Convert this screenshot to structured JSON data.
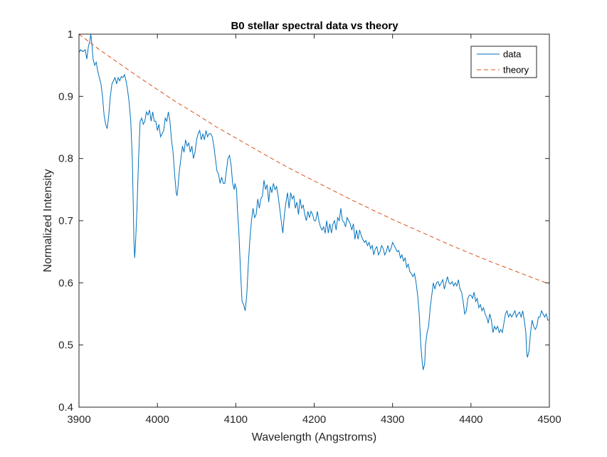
{
  "chart_data": {
    "type": "line",
    "title": "B0 stellar spectral data vs theory",
    "xlabel": "Wavelength (Angstroms)",
    "ylabel": "Normalized Intensity",
    "xlim": [
      3900,
      4500
    ],
    "ylim": [
      0.4,
      1.0
    ],
    "xticks": [
      3900,
      4000,
      4100,
      4200,
      4300,
      4400,
      4500
    ],
    "yticks": [
      0.4,
      0.5,
      0.6,
      0.7,
      0.8,
      0.9,
      1.0
    ],
    "xtick_labels": [
      "3900",
      "4000",
      "4100",
      "4200",
      "4300",
      "4400",
      "4500"
    ],
    "ytick_labels": [
      "0.4",
      "0.5",
      "0.6",
      "0.7",
      "0.8",
      "0.9",
      "1"
    ],
    "grid": false,
    "legend_position": "top-right",
    "series": [
      {
        "name": "data",
        "color": "#0072BD",
        "style": "solid",
        "x": [
          3900,
          3902,
          3905,
          3908,
          3910,
          3912,
          3914,
          3915,
          3916,
          3918,
          3920,
          3922,
          3924,
          3926,
          3928,
          3930,
          3932,
          3934,
          3936,
          3938,
          3940,
          3942,
          3944,
          3946,
          3948,
          3950,
          3952,
          3954,
          3956,
          3958,
          3960,
          3962,
          3964,
          3966,
          3968,
          3969,
          3970,
          3971,
          3972,
          3974,
          3976,
          3978,
          3980,
          3982,
          3984,
          3986,
          3988,
          3990,
          3992,
          3994,
          3996,
          3998,
          4000,
          4002,
          4004,
          4006,
          4008,
          4010,
          4012,
          4014,
          4016,
          4018,
          4020,
          4022,
          4024,
          4025,
          4026,
          4028,
          4030,
          4032,
          4034,
          4036,
          4038,
          4040,
          4042,
          4044,
          4046,
          4048,
          4050,
          4052,
          4054,
          4056,
          4058,
          4060,
          4062,
          4064,
          4066,
          4068,
          4070,
          4072,
          4074,
          4076,
          4078,
          4080,
          4082,
          4084,
          4086,
          4088,
          4090,
          4092,
          4094,
          4096,
          4098,
          4099,
          4100,
          4101,
          4102,
          4104,
          4106,
          4108,
          4110,
          4112,
          4114,
          4116,
          4118,
          4120,
          4122,
          4124,
          4126,
          4128,
          4130,
          4132,
          4134,
          4136,
          4138,
          4140,
          4142,
          4144,
          4146,
          4148,
          4150,
          4152,
          4154,
          4156,
          4158,
          4160,
          4162,
          4164,
          4166,
          4168,
          4170,
          4172,
          4174,
          4176,
          4178,
          4180,
          4182,
          4184,
          4186,
          4188,
          4190,
          4192,
          4194,
          4196,
          4198,
          4200,
          4202,
          4204,
          4206,
          4208,
          4210,
          4212,
          4214,
          4216,
          4218,
          4220,
          4222,
          4224,
          4226,
          4228,
          4230,
          4232,
          4234,
          4236,
          4238,
          4240,
          4242,
          4244,
          4246,
          4248,
          4250,
          4252,
          4254,
          4256,
          4258,
          4260,
          4262,
          4264,
          4266,
          4268,
          4270,
          4272,
          4274,
          4276,
          4278,
          4280,
          4282,
          4284,
          4286,
          4288,
          4290,
          4292,
          4294,
          4296,
          4298,
          4300,
          4302,
          4304,
          4306,
          4308,
          4310,
          4312,
          4314,
          4316,
          4318,
          4320,
          4322,
          4324,
          4326,
          4328,
          4330,
          4332,
          4334,
          4336,
          4338,
          4339,
          4340,
          4341,
          4342,
          4344,
          4346,
          4348,
          4350,
          4352,
          4354,
          4356,
          4358,
          4360,
          4362,
          4364,
          4366,
          4368,
          4370,
          4372,
          4374,
          4376,
          4378,
          4380,
          4382,
          4384,
          4386,
          4388,
          4390,
          4392,
          4394,
          4396,
          4398,
          4400,
          4402,
          4404,
          4406,
          4408,
          4410,
          4412,
          4414,
          4416,
          4418,
          4420,
          4422,
          4424,
          4426,
          4428,
          4430,
          4432,
          4434,
          4436,
          4438,
          4440,
          4442,
          4444,
          4446,
          4448,
          4450,
          4452,
          4454,
          4456,
          4458,
          4460,
          4462,
          4464,
          4466,
          4468,
          4470,
          4471,
          4472,
          4474,
          4476,
          4478,
          4480,
          4482,
          4484,
          4486,
          4488,
          4490,
          4492,
          4494,
          4496,
          4498,
          4500
        ],
        "y": [
          0.97,
          0.975,
          0.972,
          0.975,
          0.96,
          0.98,
          0.99,
          1.0,
          0.99,
          0.96,
          0.95,
          0.955,
          0.94,
          0.93,
          0.92,
          0.9,
          0.87,
          0.855,
          0.848,
          0.87,
          0.9,
          0.92,
          0.925,
          0.93,
          0.92,
          0.93,
          0.925,
          0.932,
          0.93,
          0.935,
          0.925,
          0.91,
          0.89,
          0.86,
          0.8,
          0.74,
          0.67,
          0.64,
          0.66,
          0.72,
          0.8,
          0.86,
          0.865,
          0.855,
          0.86,
          0.875,
          0.87,
          0.878,
          0.86,
          0.875,
          0.86,
          0.86,
          0.845,
          0.855,
          0.835,
          0.84,
          0.845,
          0.865,
          0.86,
          0.875,
          0.86,
          0.83,
          0.81,
          0.775,
          0.745,
          0.74,
          0.75,
          0.78,
          0.8,
          0.82,
          0.81,
          0.83,
          0.82,
          0.825,
          0.81,
          0.82,
          0.8,
          0.81,
          0.83,
          0.84,
          0.845,
          0.83,
          0.84,
          0.83,
          0.845,
          0.835,
          0.84,
          0.84,
          0.835,
          0.82,
          0.8,
          0.78,
          0.775,
          0.76,
          0.77,
          0.76,
          0.76,
          0.78,
          0.8,
          0.805,
          0.79,
          0.76,
          0.75,
          0.76,
          0.755,
          0.75,
          0.72,
          0.68,
          0.62,
          0.57,
          0.565,
          0.555,
          0.58,
          0.63,
          0.67,
          0.7,
          0.72,
          0.705,
          0.71,
          0.735,
          0.72,
          0.735,
          0.74,
          0.765,
          0.75,
          0.758,
          0.73,
          0.755,
          0.745,
          0.76,
          0.75,
          0.755,
          0.74,
          0.72,
          0.7,
          0.68,
          0.71,
          0.73,
          0.745,
          0.72,
          0.745,
          0.735,
          0.74,
          0.72,
          0.73,
          0.71,
          0.735,
          0.72,
          0.725,
          0.71,
          0.7,
          0.715,
          0.705,
          0.715,
          0.71,
          0.7,
          0.7,
          0.715,
          0.7,
          0.69,
          0.685,
          0.69,
          0.68,
          0.7,
          0.68,
          0.695,
          0.68,
          0.695,
          0.7,
          0.685,
          0.705,
          0.7,
          0.72,
          0.7,
          0.698,
          0.69,
          0.705,
          0.7,
          0.695,
          0.685,
          0.695,
          0.67,
          0.685,
          0.67,
          0.685,
          0.676,
          0.67,
          0.665,
          0.668,
          0.66,
          0.665,
          0.655,
          0.66,
          0.645,
          0.655,
          0.658,
          0.645,
          0.65,
          0.66,
          0.655,
          0.645,
          0.65,
          0.66,
          0.65,
          0.655,
          0.665,
          0.66,
          0.655,
          0.65,
          0.652,
          0.64,
          0.645,
          0.635,
          0.64,
          0.625,
          0.63,
          0.618,
          0.615,
          0.61,
          0.615,
          0.6,
          0.58,
          0.55,
          0.5,
          0.47,
          0.46,
          0.465,
          0.47,
          0.5,
          0.52,
          0.53,
          0.56,
          0.58,
          0.6,
          0.59,
          0.6,
          0.602,
          0.595,
          0.6,
          0.605,
          0.59,
          0.6,
          0.61,
          0.6,
          0.598,
          0.602,
          0.595,
          0.6,
          0.595,
          0.605,
          0.59,
          0.585,
          0.57,
          0.55,
          0.555,
          0.575,
          0.58,
          0.58,
          0.575,
          0.585,
          0.57,
          0.575,
          0.56,
          0.565,
          0.555,
          0.56,
          0.55,
          0.545,
          0.535,
          0.55,
          0.54,
          0.52,
          0.53,
          0.525,
          0.53,
          0.52,
          0.525,
          0.52,
          0.535,
          0.55,
          0.555,
          0.545,
          0.55,
          0.545,
          0.55,
          0.555,
          0.545,
          0.55,
          0.553,
          0.545,
          0.555,
          0.54,
          0.52,
          0.49,
          0.48,
          0.49,
          0.52,
          0.54,
          0.53,
          0.525,
          0.53,
          0.545,
          0.545,
          0.555,
          0.55,
          0.545,
          0.55,
          0.54,
          0.54
        ]
      },
      {
        "name": "theory",
        "color": "#D95319",
        "style": "dashed",
        "x": [
          3900,
          3925,
          3950,
          3975,
          4000,
          4025,
          4050,
          4075,
          4100,
          4125,
          4150,
          4175,
          4200,
          4225,
          4250,
          4275,
          4300,
          4325,
          4350,
          4375,
          4400,
          4425,
          4450,
          4475,
          4500
        ],
        "y": [
          1.0,
          0.976,
          0.954,
          0.932,
          0.911,
          0.89,
          0.871,
          0.851,
          0.833,
          0.815,
          0.797,
          0.78,
          0.764,
          0.748,
          0.732,
          0.717,
          0.702,
          0.688,
          0.674,
          0.66,
          0.647,
          0.634,
          0.622,
          0.61,
          0.598
        ]
      }
    ]
  }
}
